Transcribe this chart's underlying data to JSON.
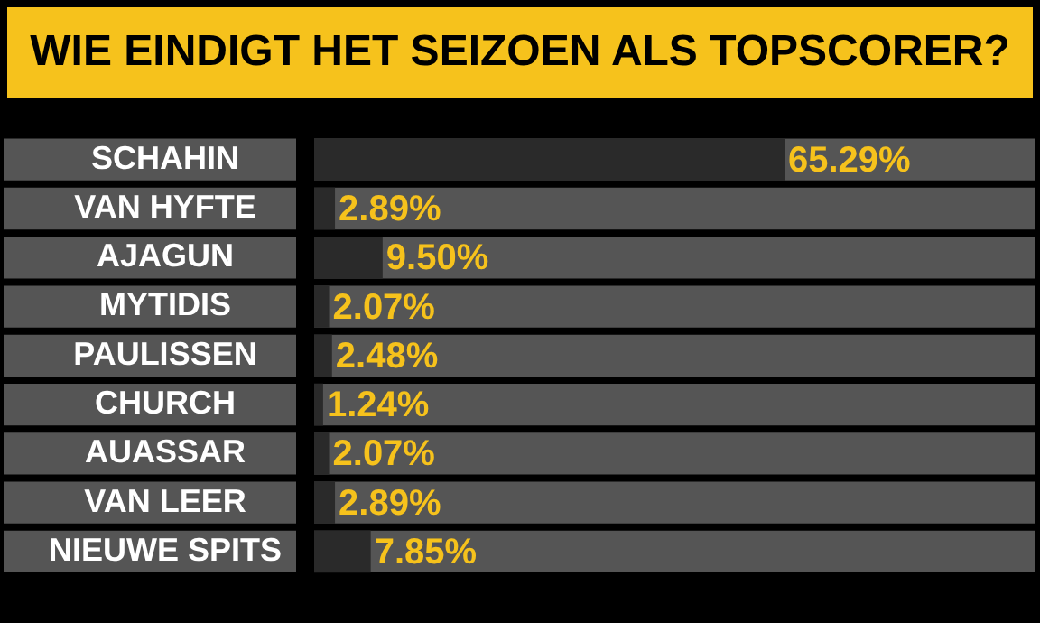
{
  "chart_data": {
    "type": "bar",
    "orientation": "horizontal",
    "title": "WIE EINDIGT HET SEIZOEN ALS TOPSCORER?",
    "categories": [
      "SCHAHIN",
      "VAN HYFTE",
      "AJAGUN",
      "MYTIDIS",
      "PAULISSEN",
      "CHURCH",
      "AUASSAR",
      "VAN LEER",
      "NIEUWE SPITS"
    ],
    "values": [
      65.29,
      2.89,
      9.5,
      2.07,
      2.48,
      1.24,
      2.07,
      2.89,
      7.85
    ],
    "value_labels": [
      "65.29%",
      "2.89%",
      "9.50%",
      "2.07%",
      "2.48%",
      "1.24%",
      "2.07%",
      "2.89%",
      "7.85%"
    ],
    "color": "#2a2a2a",
    "xlim": [
      0,
      100
    ],
    "tick_labels": "y",
    "legend": false
  }
}
